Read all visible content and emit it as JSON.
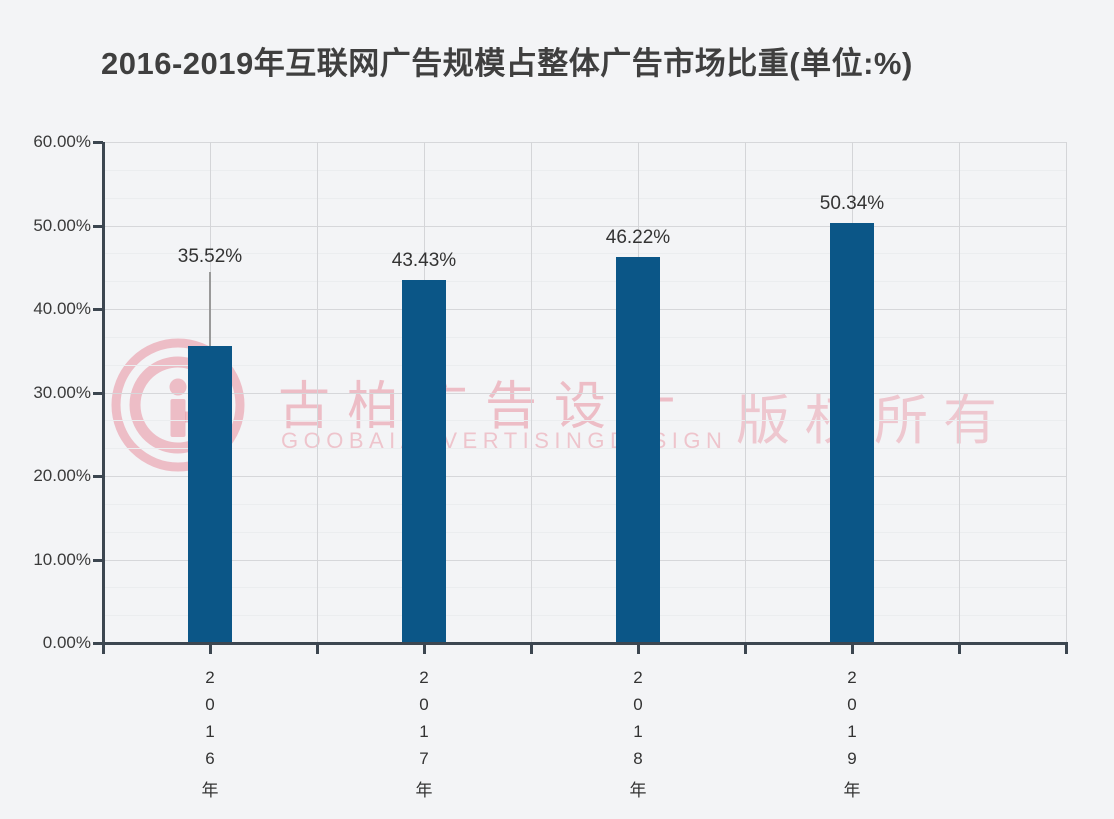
{
  "page": {
    "background": "#f3f4f6"
  },
  "title": "2016-2019年互联网广告规模占整体广告市场比重(单位:%)",
  "chart_data": {
    "type": "bar",
    "title": "2016-2019年互联网广告规模占整体广告市场比重(单位:%)",
    "categories": [
      "2016年",
      "2017年",
      "2018年",
      "2019年"
    ],
    "values": [
      35.52,
      43.43,
      46.22,
      50.34
    ],
    "data_labels": [
      "35.52%",
      "43.43%",
      "46.22%",
      "50.34%"
    ],
    "xlabel": "",
    "ylabel": "",
    "ylim": [
      0,
      60
    ],
    "y_tick_interval": 10,
    "y_minor_divisions": 3,
    "y_tick_labels": [
      "60.00%",
      "50.00%",
      "40.00%",
      "30.00%",
      "20.00%",
      "10.00%",
      "0.00%"
    ],
    "grid": true,
    "legend": "none",
    "bar_color": "#0b5687",
    "axis_color": "#3c4650",
    "value_label_color": "#333333",
    "first_label_leader_line": true
  },
  "watermark": {
    "logo_icon": "goobai-logo",
    "cn_text": "古柏广告设计",
    "en_text": "GOOBAIADVERTISINGDESIGN",
    "rights_text": "版权所有",
    "color_rgba": "rgba(226,85,110,0.35)"
  }
}
